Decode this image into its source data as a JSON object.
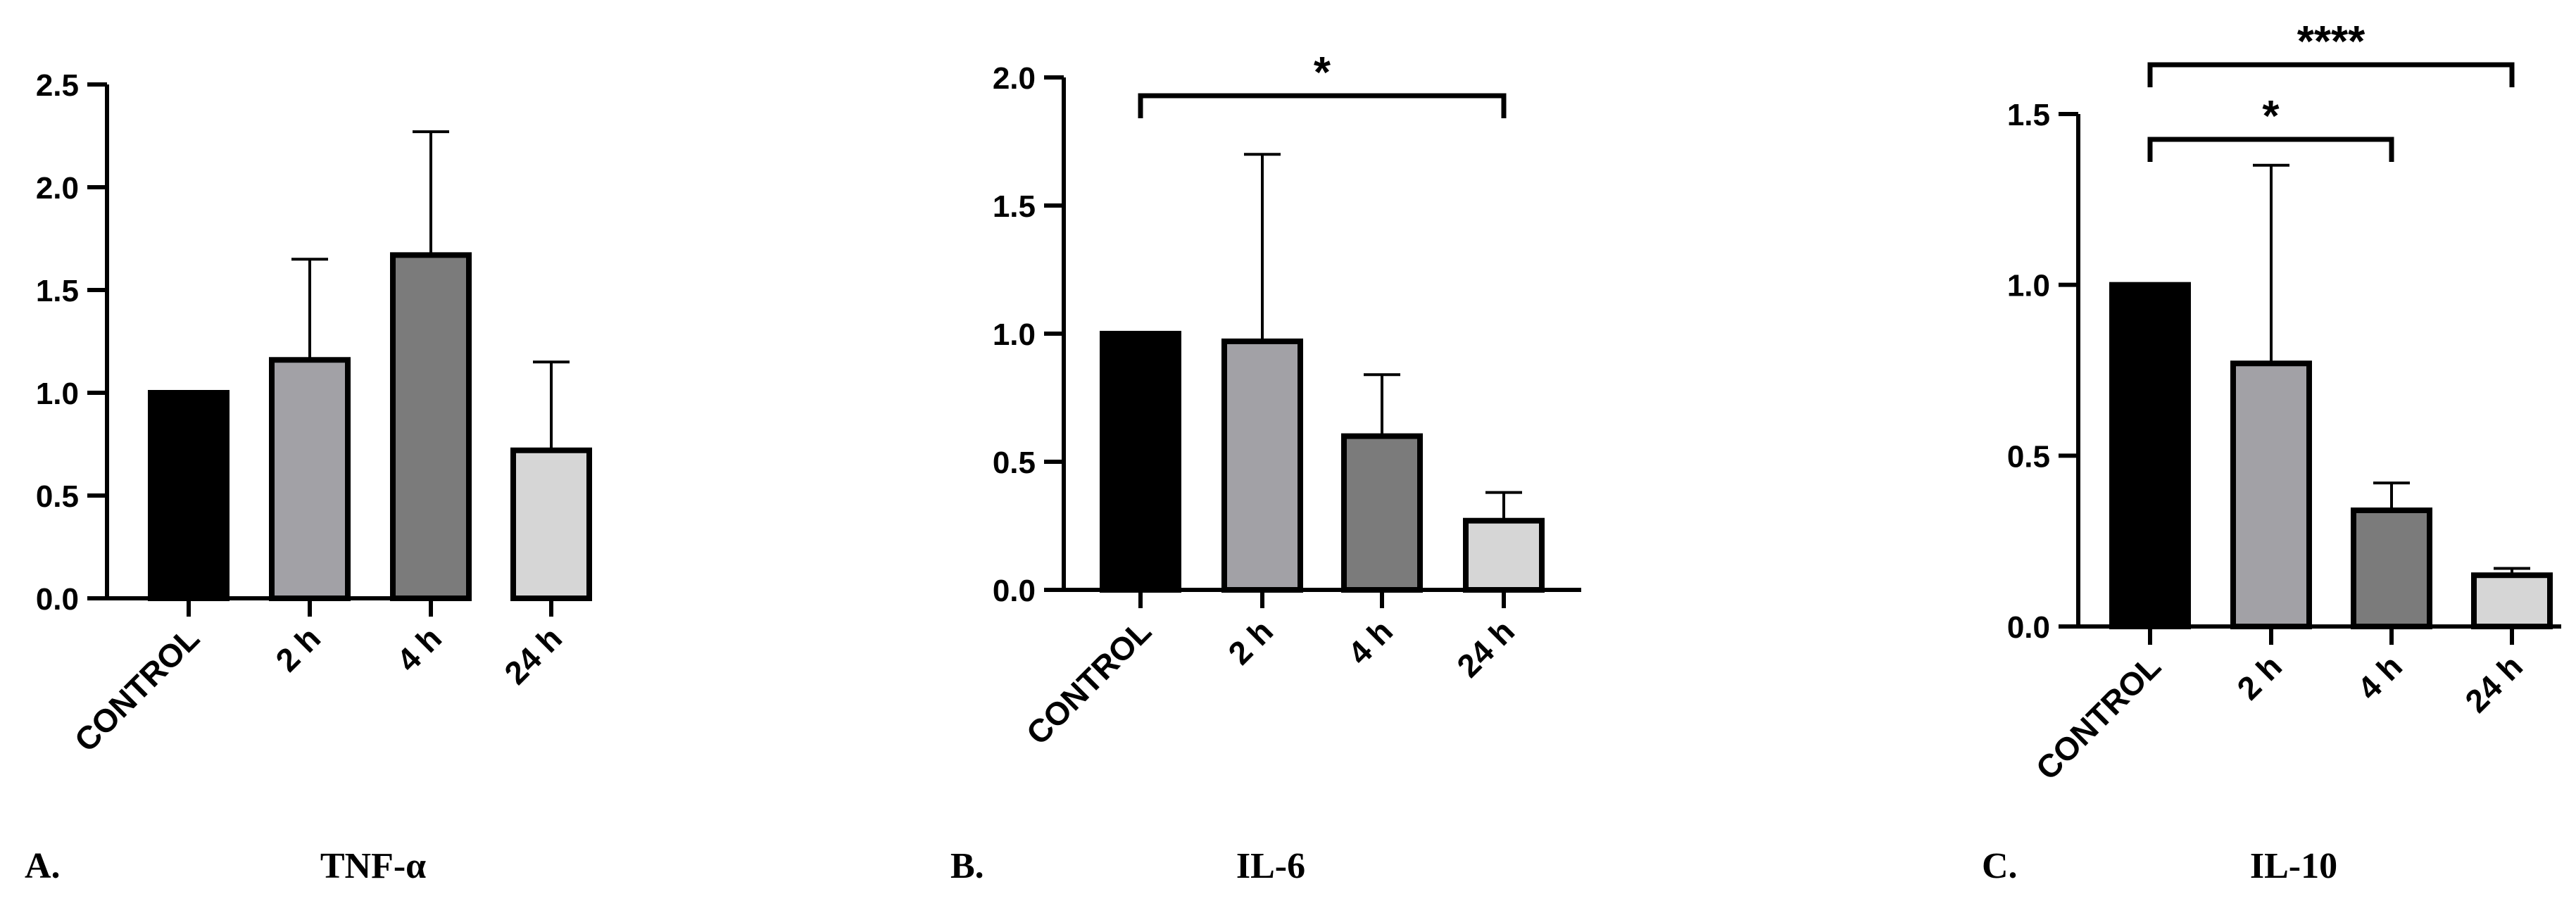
{
  "chart_data": [
    {
      "type": "bar",
      "panel_letter": "A.",
      "title": "TNF-α",
      "categories": [
        "CONTROL",
        "2 h",
        "4 h",
        "24 h"
      ],
      "values": [
        1.0,
        1.16,
        1.67,
        0.72
      ],
      "errors": [
        0,
        0.49,
        0.6,
        0.43
      ],
      "ylim": [
        0,
        2.5
      ],
      "yticks": [
        "0.0",
        "0.5",
        "1.0",
        "1.5",
        "2.0",
        "2.5"
      ],
      "bar_colors": [
        "#000000",
        "#a2a1a6",
        "#7b7b7b",
        "#d6d6d6"
      ],
      "significance": []
    },
    {
      "type": "bar",
      "panel_letter": "B.",
      "title": "IL-6",
      "categories": [
        "CONTROL",
        "2 h",
        "4 h",
        "24 h"
      ],
      "values": [
        1.0,
        0.97,
        0.6,
        0.27
      ],
      "errors": [
        0,
        0.73,
        0.24,
        0.11
      ],
      "ylim": [
        0,
        2.0
      ],
      "yticks": [
        "0.0",
        "0.5",
        "1.0",
        "1.5",
        "2.0"
      ],
      "bar_colors": [
        "#000000",
        "#a2a1a6",
        "#7b7b7b",
        "#d6d6d6"
      ],
      "significance": [
        {
          "from": 0,
          "to": 3,
          "label": "*"
        }
      ]
    },
    {
      "type": "bar",
      "panel_letter": "C.",
      "title": "IL-10",
      "categories": [
        "CONTROL",
        "2 h",
        "4 h",
        "24 h"
      ],
      "values": [
        1.0,
        0.77,
        0.34,
        0.15
      ],
      "errors": [
        0,
        0.58,
        0.08,
        0.02
      ],
      "ylim": [
        0,
        1.5
      ],
      "yticks": [
        "0.0",
        "0.5",
        "1.0",
        "1.5"
      ],
      "bar_colors": [
        "#000000",
        "#a2a1a6",
        "#7b7b7b",
        "#d6d6d6"
      ],
      "significance": [
        {
          "from": 0,
          "to": 2,
          "label": "*"
        },
        {
          "from": 0,
          "to": 3,
          "label": "****"
        }
      ]
    }
  ]
}
